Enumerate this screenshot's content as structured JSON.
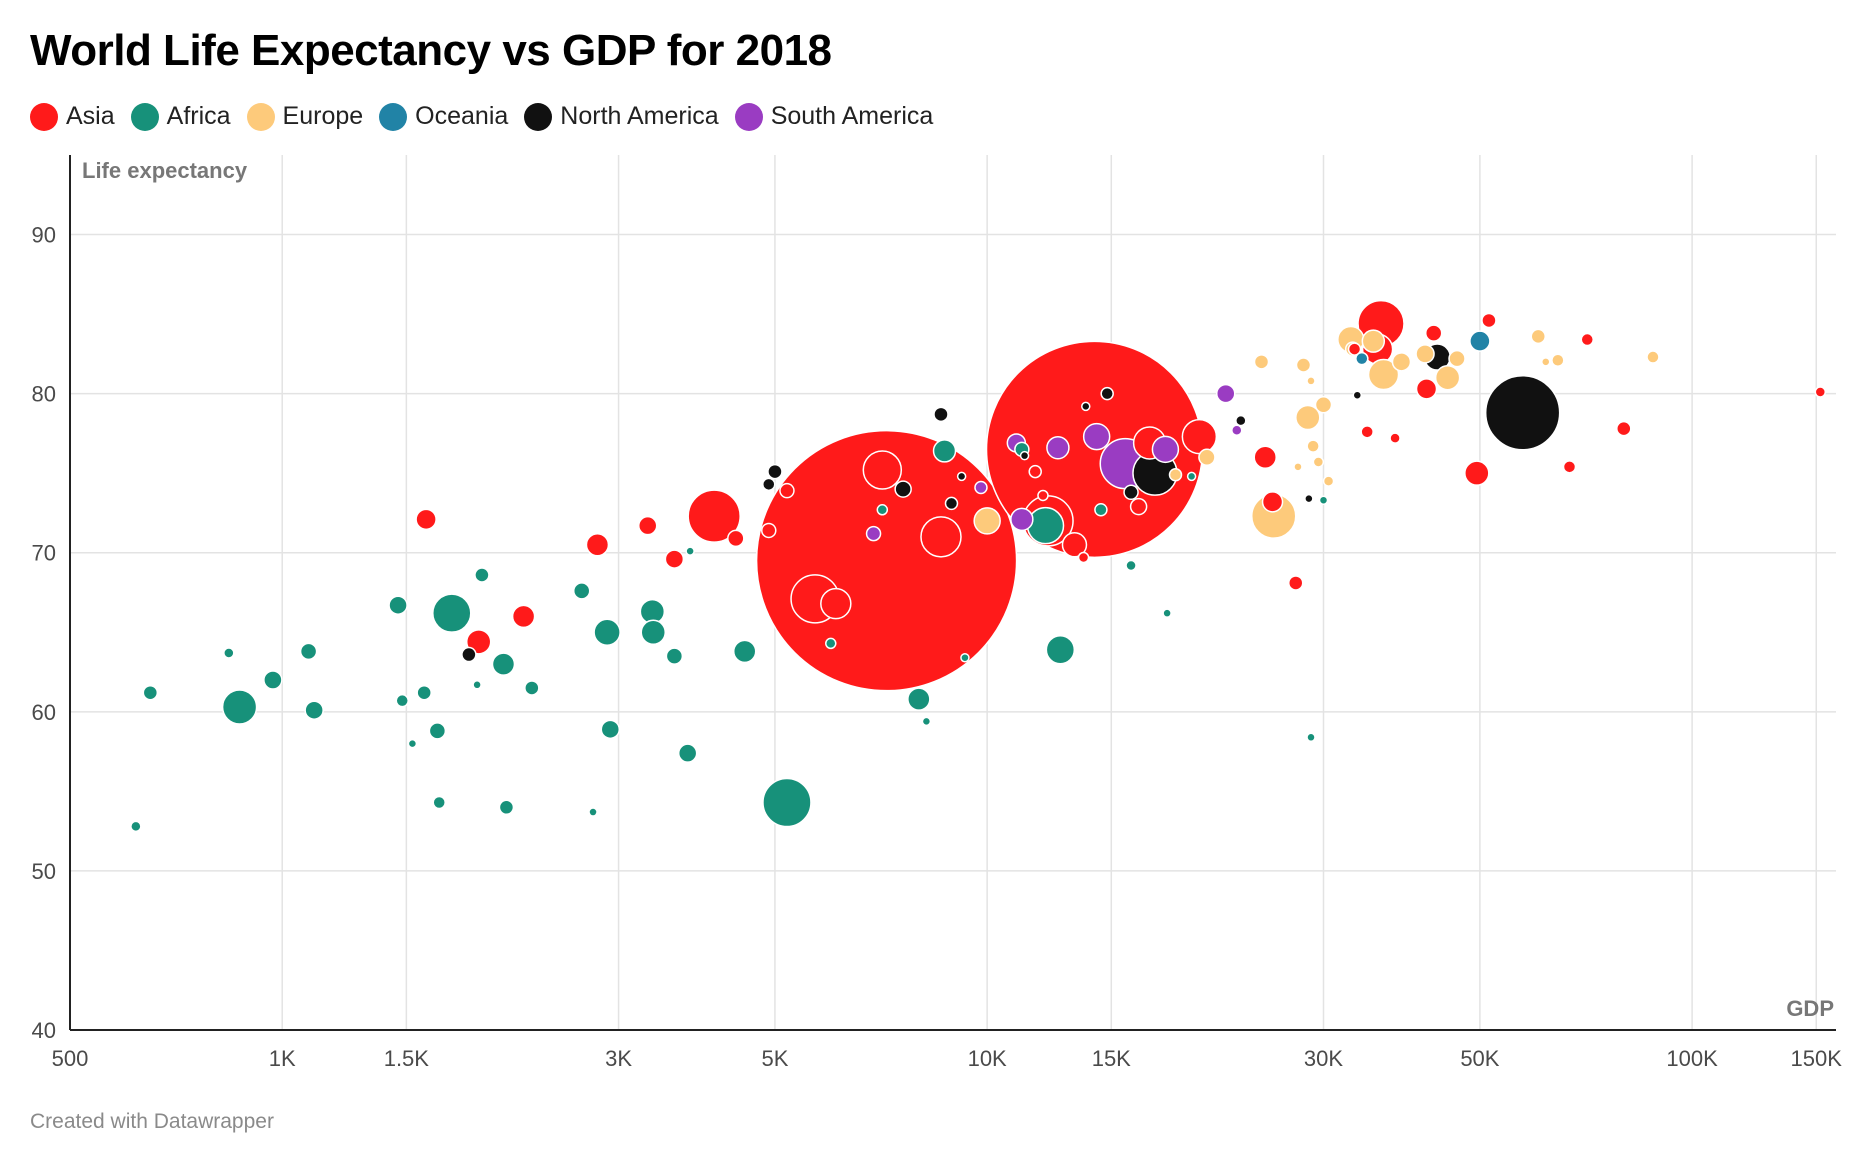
{
  "title": "World Life Expectancy vs GDP for 2018",
  "footer": "Created with Datawrapper",
  "colors": {
    "Asia": "#ff1a1a",
    "Africa": "#17917a",
    "Europe": "#fdca7b",
    "Oceania": "#2183a6",
    "North America": "#111111",
    "South America": "#9a3cc2"
  },
  "legend": [
    {
      "label": "Asia",
      "color": "#ff1a1a"
    },
    {
      "label": "Africa",
      "color": "#17917a"
    },
    {
      "label": "Europe",
      "color": "#fdca7b"
    },
    {
      "label": "Oceania",
      "color": "#2183a6"
    },
    {
      "label": "North America",
      "color": "#111111"
    },
    {
      "label": "South America",
      "color": "#9a3cc2"
    }
  ],
  "chart_data": {
    "type": "scatter",
    "title": "World Life Expectancy vs GDP for 2018",
    "xlabel": "GDP",
    "ylabel": "Life expectancy",
    "x_scale": "log",
    "xlim": [
      500,
      160000
    ],
    "ylim": [
      40,
      95
    ],
    "x_ticks": [
      500,
      1000,
      1500,
      3000,
      5000,
      10000,
      15000,
      30000,
      50000,
      100000,
      150000
    ],
    "x_tick_labels": [
      "500",
      "1K",
      "1.5K",
      "3K",
      "5K",
      "10K",
      "15K",
      "30K",
      "50K",
      "100K",
      "150K"
    ],
    "y_ticks": [
      40,
      50,
      60,
      70,
      80,
      90
    ],
    "y_tick_labels": [
      "40",
      "50",
      "60",
      "70",
      "80",
      "90"
    ],
    "grid": true,
    "legend_position": "top-left",
    "series": [
      {
        "name": "Asia",
        "points": [
          [
            7200,
            69.5,
            130
          ],
          [
            14200,
            76.5,
            108
          ],
          [
            4100,
            72.3,
            26
          ],
          [
            5700,
            67.1,
            24
          ],
          [
            7100,
            75.2,
            19
          ],
          [
            8600,
            71.0,
            20
          ],
          [
            12200,
            72.0,
            25
          ],
          [
            6100,
            66.8,
            15
          ],
          [
            1600,
            72.1,
            10
          ],
          [
            2800,
            70.5,
            11
          ],
          [
            3300,
            71.7,
            9
          ],
          [
            2200,
            66.0,
            11
          ],
          [
            1900,
            64.4,
            12
          ],
          [
            3600,
            69.6,
            9
          ],
          [
            4400,
            70.9,
            8
          ],
          [
            4900,
            71.4,
            7
          ],
          [
            5200,
            73.9,
            7
          ],
          [
            13300,
            70.5,
            12
          ],
          [
            17000,
            76.9,
            16
          ],
          [
            20000,
            77.3,
            17
          ],
          [
            16400,
            72.9,
            8
          ],
          [
            24800,
            76.0,
            11
          ],
          [
            25400,
            73.2,
            10
          ],
          [
            27400,
            68.1,
            7
          ],
          [
            36200,
            84.4,
            23
          ],
          [
            35800,
            82.8,
            15
          ],
          [
            42000,
            80.3,
            10
          ],
          [
            43000,
            83.8,
            8
          ],
          [
            49500,
            75.0,
            12
          ],
          [
            51500,
            84.6,
            7
          ],
          [
            67000,
            75.4,
            6
          ],
          [
            71000,
            83.4,
            6
          ],
          [
            80000,
            77.8,
            7
          ],
          [
            152000,
            80.1,
            5
          ],
          [
            34600,
            77.6,
            6
          ],
          [
            37900,
            77.2,
            5
          ],
          [
            33200,
            82.8,
            6
          ],
          [
            13700,
            69.7,
            5
          ],
          [
            11700,
            75.1,
            6
          ],
          [
            12000,
            73.6,
            5
          ]
        ]
      },
      {
        "name": "Africa",
        "points": [
          [
            620,
            52.8,
            5
          ],
          [
            650,
            61.2,
            7
          ],
          [
            840,
            63.7,
            5
          ],
          [
            870,
            60.3,
            17
          ],
          [
            970,
            62.0,
            9
          ],
          [
            1090,
            63.8,
            8
          ],
          [
            1110,
            60.1,
            9
          ],
          [
            1460,
            66.7,
            9
          ],
          [
            1480,
            60.7,
            6
          ],
          [
            1530,
            58.0,
            4
          ],
          [
            1590,
            61.2,
            7
          ],
          [
            1660,
            58.8,
            8
          ],
          [
            1670,
            54.3,
            6
          ],
          [
            1740,
            66.2,
            19
          ],
          [
            1890,
            61.7,
            4
          ],
          [
            1920,
            68.6,
            7
          ],
          [
            2060,
            63.0,
            11
          ],
          [
            2080,
            54.0,
            7
          ],
          [
            2260,
            61.5,
            7
          ],
          [
            2660,
            67.6,
            8
          ],
          [
            2760,
            53.7,
            4
          ],
          [
            2890,
            65.0,
            13
          ],
          [
            2920,
            58.9,
            9
          ],
          [
            3350,
            66.3,
            12
          ],
          [
            3360,
            65.0,
            12
          ],
          [
            3600,
            63.5,
            8
          ],
          [
            3760,
            57.4,
            9
          ],
          [
            3790,
            70.1,
            4
          ],
          [
            4530,
            63.8,
            11
          ],
          [
            5200,
            54.3,
            24
          ],
          [
            6000,
            64.3,
            5
          ],
          [
            7100,
            72.7,
            5
          ],
          [
            8000,
            60.8,
            11
          ],
          [
            8200,
            59.4,
            4
          ],
          [
            8700,
            76.4,
            11
          ],
          [
            9300,
            63.4,
            4
          ],
          [
            11200,
            76.5,
            7
          ],
          [
            12100,
            71.7,
            18
          ],
          [
            12700,
            63.9,
            14
          ],
          [
            14500,
            72.7,
            6
          ],
          [
            16000,
            69.2,
            5
          ],
          [
            18000,
            66.2,
            4
          ],
          [
            19500,
            74.8,
            4
          ],
          [
            28800,
            58.4,
            4
          ],
          [
            30000,
            73.3,
            4
          ]
        ]
      },
      {
        "name": "Europe",
        "points": [
          [
            25500,
            72.3,
            22
          ],
          [
            28500,
            78.5,
            12
          ],
          [
            30000,
            79.3,
            8
          ],
          [
            32800,
            83.4,
            13
          ],
          [
            35300,
            83.3,
            11
          ],
          [
            36500,
            81.2,
            15
          ],
          [
            38700,
            82.0,
            9
          ],
          [
            41800,
            82.5,
            9
          ],
          [
            45000,
            81.0,
            12
          ],
          [
            46400,
            82.2,
            8
          ],
          [
            60500,
            83.6,
            7
          ],
          [
            64500,
            82.1,
            6
          ],
          [
            88000,
            82.3,
            6
          ],
          [
            24500,
            82.0,
            7
          ],
          [
            28100,
            81.8,
            7
          ],
          [
            29000,
            76.7,
            6
          ],
          [
            20500,
            76.0,
            8
          ],
          [
            18500,
            74.9,
            6
          ],
          [
            10000,
            72.0,
            13
          ],
          [
            27600,
            75.4,
            4
          ],
          [
            30500,
            74.5,
            5
          ],
          [
            62000,
            82.0,
            4
          ],
          [
            28800,
            80.8,
            4
          ],
          [
            29500,
            75.7,
            5
          ],
          [
            33000,
            82.8,
            7
          ]
        ]
      },
      {
        "name": "Oceania",
        "points": [
          [
            50000,
            83.3,
            10
          ],
          [
            34000,
            82.2,
            6
          ]
        ]
      },
      {
        "name": "North America",
        "points": [
          [
            57500,
            78.8,
            37
          ],
          [
            43500,
            82.3,
            13
          ],
          [
            17300,
            75.0,
            22
          ],
          [
            5000,
            75.1,
            7
          ],
          [
            4900,
            74.3,
            6
          ],
          [
            7600,
            74.0,
            8
          ],
          [
            8600,
            78.7,
            7
          ],
          [
            8900,
            73.1,
            6
          ],
          [
            9200,
            74.8,
            4
          ],
          [
            1840,
            63.6,
            7
          ],
          [
            11300,
            76.1,
            4
          ],
          [
            13800,
            79.2,
            4
          ],
          [
            14800,
            80.0,
            6
          ],
          [
            16000,
            73.8,
            7
          ],
          [
            22900,
            78.3,
            5
          ],
          [
            28600,
            73.4,
            4
          ],
          [
            33500,
            79.9,
            4
          ]
        ]
      },
      {
        "name": "South America",
        "points": [
          [
            15700,
            75.6,
            25
          ],
          [
            14300,
            77.3,
            13
          ],
          [
            12600,
            76.6,
            11
          ],
          [
            11000,
            76.9,
            9
          ],
          [
            11200,
            72.1,
            11
          ],
          [
            17900,
            76.5,
            13
          ],
          [
            21800,
            80.0,
            9
          ],
          [
            22600,
            77.7,
            5
          ],
          [
            9800,
            74.1,
            6
          ],
          [
            6900,
            71.2,
            7
          ]
        ]
      }
    ]
  }
}
